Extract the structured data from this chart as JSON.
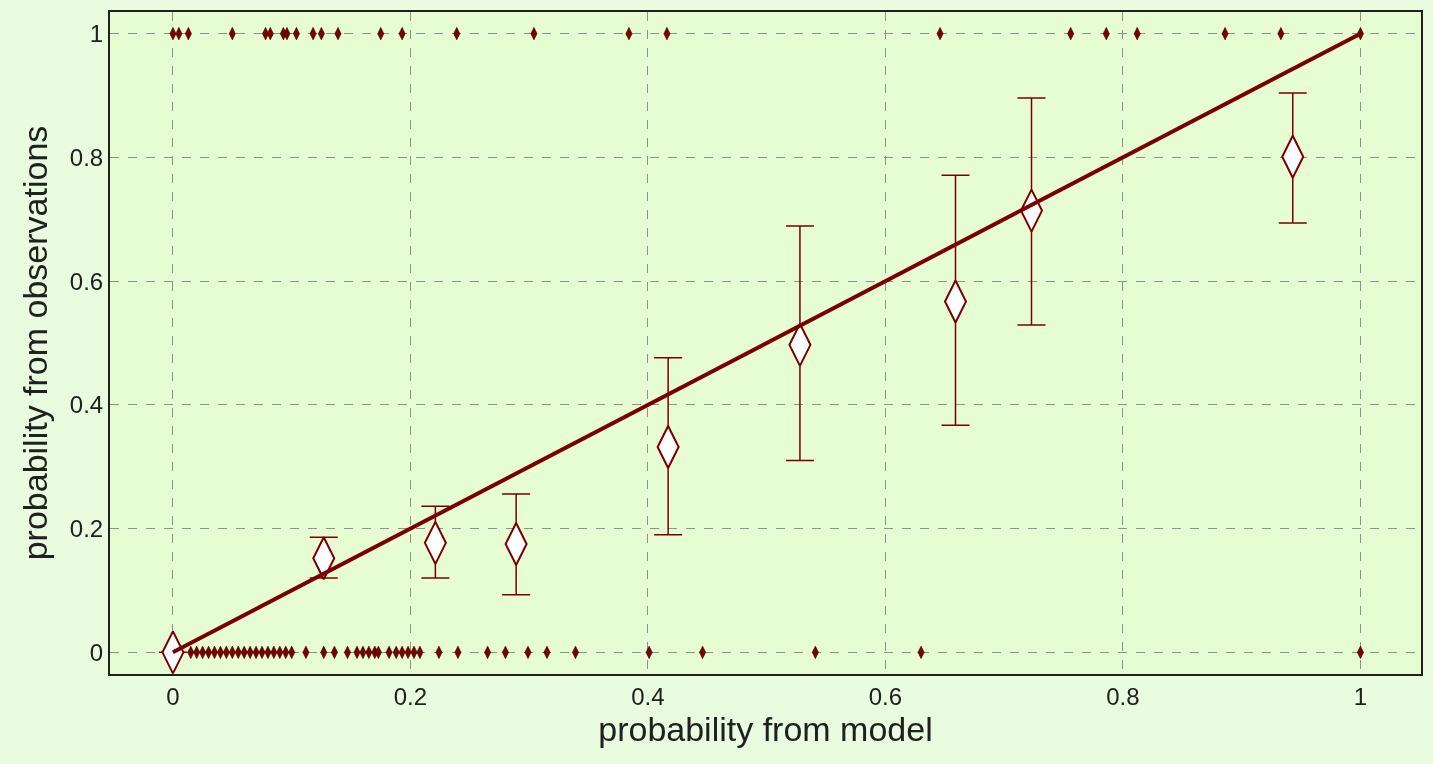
{
  "chart_data": {
    "type": "scatter",
    "xlabel": "probability from model",
    "ylabel": "probability from observations",
    "xlim": [
      -0.053,
      1.051
    ],
    "ylim": [
      -0.035,
      1.035
    ],
    "xticks": [
      0,
      0.2,
      0.4,
      0.6,
      0.8,
      1
    ],
    "yticks": [
      0,
      0.2,
      0.4,
      0.6,
      0.8,
      1
    ],
    "grid": true,
    "series": [
      {
        "marker": "diamond",
        "color": "#7a0000",
        "x": [
          0,
          0.005,
          0.013,
          0.05,
          0.078,
          0.082,
          0.093,
          0.096,
          0.104,
          0.118,
          0.125,
          0.139,
          0.175,
          0.193,
          0.239,
          0.304,
          0.384,
          0.416,
          0.646,
          0.756,
          0.786,
          0.812,
          0.886,
          0.933,
          1
        ],
        "values": [
          1,
          1,
          1,
          1,
          1,
          1,
          1,
          1,
          1,
          1,
          1,
          1,
          1,
          1,
          1,
          1,
          1,
          1,
          1,
          1,
          1,
          1,
          1,
          1,
          1
        ]
      },
      {
        "marker": "diamond",
        "color": "#7a0000",
        "x": [
          0.015,
          0.02,
          0.025,
          0.03,
          0.035,
          0.04,
          0.045,
          0.05,
          0.055,
          0.06,
          0.065,
          0.07,
          0.075,
          0.08,
          0.085,
          0.09,
          0.095,
          0.1,
          0.112,
          0.127,
          0.136,
          0.147,
          0.155,
          0.16,
          0.165,
          0.17,
          0.173,
          0.182,
          0.188,
          0.193,
          0.198,
          0.203,
          0.208,
          0.224,
          0.24,
          0.265,
          0.28,
          0.299,
          0.315,
          0.339,
          0.401,
          0.446,
          0.541,
          0.63,
          1
        ],
        "values": [
          0,
          0,
          0,
          0,
          0,
          0,
          0,
          0,
          0,
          0,
          0,
          0,
          0,
          0,
          0,
          0,
          0,
          0,
          0,
          0,
          0,
          0,
          0,
          0,
          0,
          0,
          0,
          0,
          0,
          0,
          0,
          0,
          0,
          0,
          0,
          0,
          0,
          0,
          0,
          0,
          0,
          0,
          0,
          0,
          0
        ]
      },
      {
        "marker": "diamond",
        "color": "#7a0000",
        "x": [
          0,
          0.127,
          0.221,
          0.289,
          0.417,
          0.528,
          0.659,
          0.723,
          0.943
        ],
        "values": [
          0,
          0.152,
          0.177,
          0.175,
          0.332,
          0.497,
          0.567,
          0.714,
          0.801
        ],
        "errors": [
          null,
          [
            0.12,
            0.186
          ],
          [
            0.12,
            0.236
          ],
          [
            0.093,
            0.256
          ],
          [
            0.19,
            0.476
          ],
          [
            0.31,
            0.689
          ],
          [
            0.367,
            0.771
          ],
          [
            0.529,
            0.896
          ],
          [
            0.694,
            0.904
          ]
        ]
      },
      {
        "type": "line",
        "marker": "none",
        "color": "#7a0000",
        "x": [
          0,
          1
        ],
        "values": [
          0,
          1
        ]
      }
    ]
  }
}
